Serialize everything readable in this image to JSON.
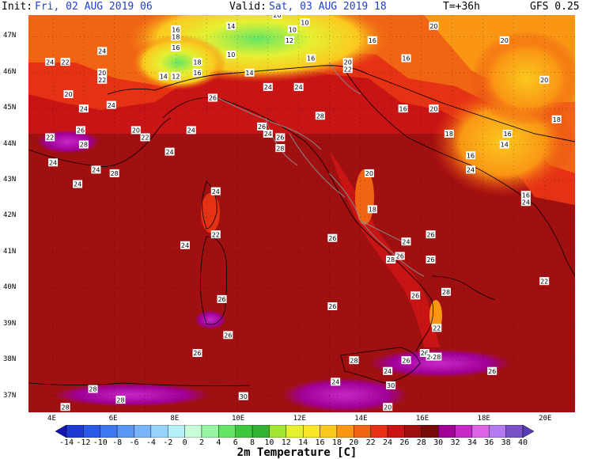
{
  "header": {
    "init_label": "Init:",
    "init_value": "Fri, 02 AUG 2019 06",
    "valid_label": "Valid:",
    "valid_value": "Sat, 03 AUG 2019 18",
    "lead": "T=+36h",
    "model": "GFS 0.25"
  },
  "lat_labels": [
    "47N",
    "46N",
    "45N",
    "44N",
    "43N",
    "42N",
    "41N",
    "40N",
    "39N",
    "38N",
    "37N"
  ],
  "lon_labels": [
    "4E",
    "6E",
    "8E",
    "10E",
    "12E",
    "14E",
    "16E",
    "18E",
    "20E"
  ],
  "colorbar": {
    "title": "2m Temperature [C]",
    "ticks": [
      "-14",
      "-12",
      "-10",
      "-8",
      "-6",
      "-4",
      "-2",
      "0",
      "2",
      "4",
      "6",
      "8",
      "10",
      "12",
      "14",
      "16",
      "18",
      "20",
      "22",
      "24",
      "26",
      "28",
      "30",
      "32",
      "34",
      "36",
      "38",
      "40"
    ],
    "colors": [
      "#1616b4",
      "#1f3cd2",
      "#2a5ae6",
      "#3c78f0",
      "#5a96f5",
      "#78b4fa",
      "#96d2fa",
      "#b4f0fa",
      "#c8ffd8",
      "#96f5a0",
      "#64e664",
      "#3cc83c",
      "#32b432",
      "#a0e632",
      "#e6f032",
      "#fae628",
      "#fac81e",
      "#fa9614",
      "#f06414",
      "#e63214",
      "#c81414",
      "#a01010",
      "#780a0a",
      "#a00096",
      "#c828c8",
      "#dc64e6",
      "#b478f0",
      "#7850c8",
      "#5a3cb4"
    ]
  },
  "temp_labels": [
    {
      "t": "20",
      "lon": 11.3,
      "lat": 47.6
    },
    {
      "t": "10",
      "lon": 12.2,
      "lat": 47.4
    },
    {
      "t": "10",
      "lon": 11.8,
      "lat": 47.2
    },
    {
      "t": "16",
      "lon": 8.0,
      "lat": 47.2
    },
    {
      "t": "14",
      "lon": 9.8,
      "lat": 47.3
    },
    {
      "t": "12",
      "lon": 11.7,
      "lat": 46.9
    },
    {
      "t": "18",
      "lon": 8.0,
      "lat": 47.0
    },
    {
      "t": "16",
      "lon": 8.0,
      "lat": 46.7
    },
    {
      "t": "16",
      "lon": 14.4,
      "lat": 46.9
    },
    {
      "t": "20",
      "lon": 16.4,
      "lat": 47.3
    },
    {
      "t": "20",
      "lon": 18.7,
      "lat": 46.9
    },
    {
      "t": "24",
      "lon": 3.9,
      "lat": 46.3
    },
    {
      "t": "22",
      "lon": 4.4,
      "lat": 46.3
    },
    {
      "t": "24",
      "lon": 5.6,
      "lat": 46.6
    },
    {
      "t": "10",
      "lon": 9.8,
      "lat": 46.5
    },
    {
      "t": "16",
      "lon": 12.4,
      "lat": 46.4
    },
    {
      "t": "20",
      "lon": 13.6,
      "lat": 46.3
    },
    {
      "t": "22",
      "lon": 13.6,
      "lat": 46.1
    },
    {
      "t": "16",
      "lon": 15.5,
      "lat": 46.4
    },
    {
      "t": "20",
      "lon": 5.6,
      "lat": 46.0
    },
    {
      "t": "22",
      "lon": 5.6,
      "lat": 45.8
    },
    {
      "t": "14",
      "lon": 7.6,
      "lat": 45.9
    },
    {
      "t": "12",
      "lon": 8.0,
      "lat": 45.9
    },
    {
      "t": "18",
      "lon": 8.7,
      "lat": 46.3
    },
    {
      "t": "16",
      "lon": 8.7,
      "lat": 46.0
    },
    {
      "t": "14",
      "lon": 10.4,
      "lat": 46.0
    },
    {
      "t": "20",
      "lon": 20.0,
      "lat": 45.8
    },
    {
      "t": "20",
      "lon": 4.5,
      "lat": 45.4
    },
    {
      "t": "24",
      "lon": 11.0,
      "lat": 45.6
    },
    {
      "t": "24",
      "lon": 12.0,
      "lat": 45.6
    },
    {
      "t": "24",
      "lon": 5.0,
      "lat": 45.0
    },
    {
      "t": "24",
      "lon": 5.9,
      "lat": 45.1
    },
    {
      "t": "26",
      "lon": 9.2,
      "lat": 45.3
    },
    {
      "t": "16",
      "lon": 15.4,
      "lat": 45.0
    },
    {
      "t": "20",
      "lon": 16.4,
      "lat": 45.0
    },
    {
      "t": "18",
      "lon": 20.4,
      "lat": 44.7
    },
    {
      "t": "28",
      "lon": 12.7,
      "lat": 44.8
    },
    {
      "t": "22",
      "lon": 3.9,
      "lat": 44.2
    },
    {
      "t": "26",
      "lon": 4.9,
      "lat": 44.4
    },
    {
      "t": "20",
      "lon": 6.7,
      "lat": 44.4
    },
    {
      "t": "22",
      "lon": 7.0,
      "lat": 44.2
    },
    {
      "t": "24",
      "lon": 8.5,
      "lat": 44.4
    },
    {
      "t": "26",
      "lon": 10.8,
      "lat": 44.5
    },
    {
      "t": "24",
      "lon": 11.0,
      "lat": 44.3
    },
    {
      "t": "26",
      "lon": 11.4,
      "lat": 44.2
    },
    {
      "t": "16",
      "lon": 18.8,
      "lat": 44.3
    },
    {
      "t": "18",
      "lon": 16.9,
      "lat": 44.3
    },
    {
      "t": "14",
      "lon": 18.7,
      "lat": 44.0
    },
    {
      "t": "28",
      "lon": 5.0,
      "lat": 44.0
    },
    {
      "t": "28",
      "lon": 11.4,
      "lat": 43.9
    },
    {
      "t": "24",
      "lon": 7.8,
      "lat": 43.8
    },
    {
      "t": "16",
      "lon": 17.6,
      "lat": 43.7
    },
    {
      "t": "24",
      "lon": 4.0,
      "lat": 43.5
    },
    {
      "t": "24",
      "lon": 5.4,
      "lat": 43.3
    },
    {
      "t": "28",
      "lon": 6.0,
      "lat": 43.2
    },
    {
      "t": "24",
      "lon": 17.6,
      "lat": 43.3
    },
    {
      "t": "20",
      "lon": 14.3,
      "lat": 43.2
    },
    {
      "t": "24",
      "lon": 4.8,
      "lat": 42.9
    },
    {
      "t": "24",
      "lon": 9.3,
      "lat": 42.7
    },
    {
      "t": "16",
      "lon": 19.4,
      "lat": 42.6
    },
    {
      "t": "24",
      "lon": 19.4,
      "lat": 42.4
    },
    {
      "t": "18",
      "lon": 14.4,
      "lat": 42.2
    },
    {
      "t": "22",
      "lon": 9.3,
      "lat": 41.5
    },
    {
      "t": "26",
      "lon": 13.1,
      "lat": 41.4
    },
    {
      "t": "26",
      "lon": 16.3,
      "lat": 41.5
    },
    {
      "t": "24",
      "lon": 8.3,
      "lat": 41.2
    },
    {
      "t": "24",
      "lon": 15.5,
      "lat": 41.3
    },
    {
      "t": "26",
      "lon": 15.3,
      "lat": 40.9
    },
    {
      "t": "28",
      "lon": 15.0,
      "lat": 40.8
    },
    {
      "t": "26",
      "lon": 16.3,
      "lat": 40.8
    },
    {
      "t": "22",
      "lon": 20.0,
      "lat": 40.2
    },
    {
      "t": "26",
      "lon": 15.8,
      "lat": 39.8
    },
    {
      "t": "28",
      "lon": 16.8,
      "lat": 39.9
    },
    {
      "t": "26",
      "lon": 9.5,
      "lat": 39.7
    },
    {
      "t": "26",
      "lon": 13.1,
      "lat": 39.5
    },
    {
      "t": "22",
      "lon": 16.5,
      "lat": 38.9
    },
    {
      "t": "26",
      "lon": 9.7,
      "lat": 38.7
    },
    {
      "t": "26",
      "lon": 8.7,
      "lat": 38.2
    },
    {
      "t": "26",
      "lon": 16.1,
      "lat": 38.2
    },
    {
      "t": "24",
      "lon": 16.3,
      "lat": 38.1
    },
    {
      "t": "28",
      "lon": 16.5,
      "lat": 38.1
    },
    {
      "t": "26",
      "lon": 15.5,
      "lat": 38.0
    },
    {
      "t": "28",
      "lon": 13.8,
      "lat": 38.0
    },
    {
      "t": "24",
      "lon": 14.9,
      "lat": 37.7
    },
    {
      "t": "26",
      "lon": 18.3,
      "lat": 37.7
    },
    {
      "t": "28",
      "lon": 5.3,
      "lat": 37.2
    },
    {
      "t": "28",
      "lon": 6.2,
      "lat": 36.9
    },
    {
      "t": "30",
      "lon": 10.2,
      "lat": 37.0
    },
    {
      "t": "30",
      "lon": 15.0,
      "lat": 37.3
    },
    {
      "t": "28",
      "lon": 4.4,
      "lat": 36.7
    },
    {
      "t": "20",
      "lon": 14.9,
      "lat": 36.7
    },
    {
      "t": "24",
      "lon": 13.2,
      "lat": 37.4
    }
  ]
}
